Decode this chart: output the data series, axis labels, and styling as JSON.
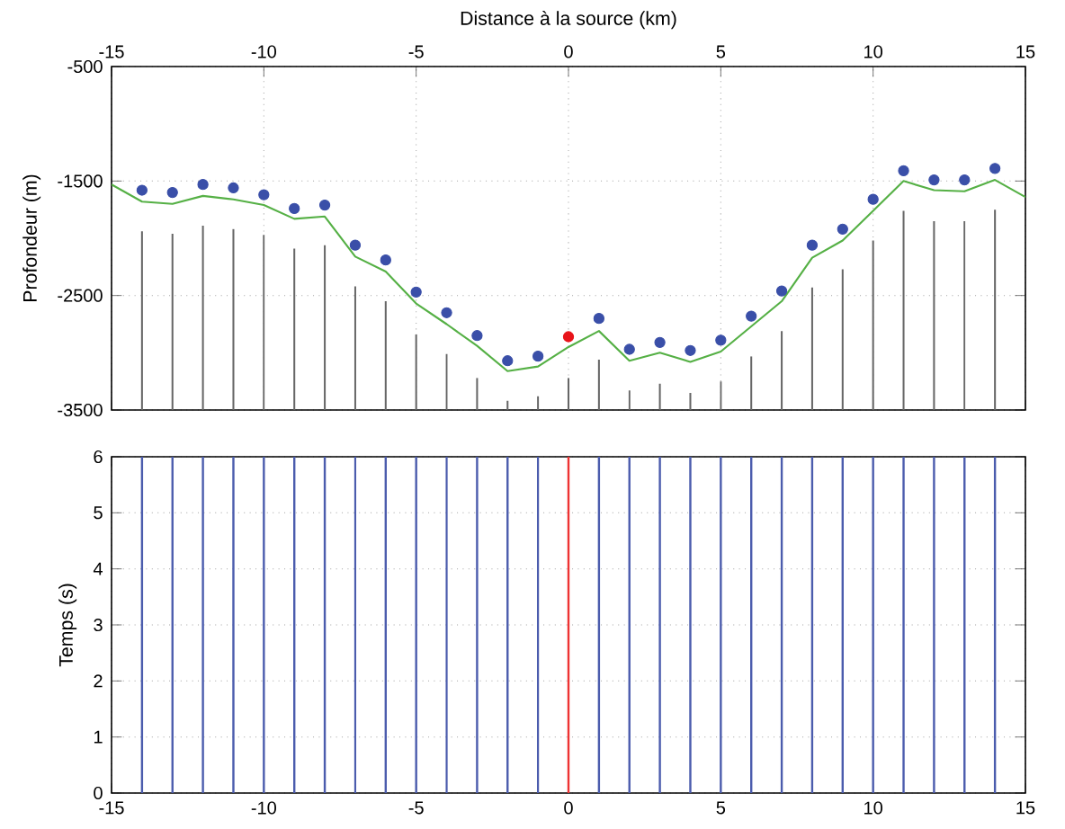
{
  "chart_data": [
    {
      "type": "line",
      "xlabel": "Distance à la source (km)",
      "ylabel": "Profondeur (m)",
      "xlim": [
        -15,
        15
      ],
      "xticks": [
        -15,
        -10,
        -5,
        0,
        5,
        10,
        15
      ],
      "ylim": [
        -3500,
        -500
      ],
      "yticks": [
        -3500,
        -2500,
        -1500,
        -500
      ],
      "grid": true,
      "series": [
        {
          "type": "bar",
          "color": "#666666",
          "x": [
            -14,
            -13,
            -12,
            -11,
            -10,
            -9,
            -8,
            -7,
            -6,
            -5,
            -4,
            -3,
            -2,
            -1,
            0,
            1,
            2,
            3,
            4,
            5,
            6,
            7,
            8,
            9,
            10,
            11,
            12,
            13,
            14
          ],
          "base": [
            -3500,
            -3500,
            -3500,
            -3500,
            -3500,
            -3500,
            -3500,
            -3500,
            -3500,
            -3500,
            -3500,
            -3500,
            -3500,
            -3500,
            -3500,
            -3500,
            -3500,
            -3500,
            -3500,
            -3500,
            -3500,
            -3500,
            -3500,
            -3500,
            -3500,
            -3500,
            -3500,
            -3500,
            -3500
          ],
          "values": [
            1560,
            1540,
            1610,
            1580,
            1530,
            1410,
            1440,
            1080,
            950,
            660,
            490,
            280,
            80,
            120,
            280,
            440,
            170,
            230,
            150,
            250,
            470,
            690,
            1070,
            1230,
            1480,
            1740,
            1650,
            1650,
            1750
          ]
        },
        {
          "color": "#55b045",
          "x": [
            -15,
            -14,
            -13,
            -12,
            -11,
            -10,
            -9,
            -8,
            -7,
            -6,
            -5,
            -4,
            -3,
            -2,
            -1,
            0,
            1,
            2,
            3,
            4,
            5,
            6,
            7,
            8,
            9,
            10,
            11,
            12,
            13,
            14,
            15
          ],
          "values": [
            -1530,
            -1680,
            -1700,
            -1630,
            -1660,
            -1710,
            -1830,
            -1810,
            -2160,
            -2290,
            -2570,
            -2750,
            -2940,
            -3160,
            -3120,
            -2950,
            -2810,
            -3070,
            -3000,
            -3080,
            -2990,
            -2770,
            -2550,
            -2170,
            -2020,
            -1760,
            -1500,
            -1580,
            -1590,
            -1490,
            -1640
          ]
        },
        {
          "type": "scatter",
          "color": "#3a4fa8",
          "x": [
            -14,
            -13,
            -12,
            -11,
            -10,
            -9,
            -8,
            -7,
            -6,
            -5,
            -4,
            -3,
            -2,
            -1,
            1,
            2,
            3,
            4,
            5,
            6,
            7,
            8,
            9,
            10,
            11,
            12,
            13,
            14
          ],
          "values": [
            -1580,
            -1600,
            -1530,
            -1560,
            -1620,
            -1740,
            -1710,
            -2060,
            -2190,
            -2470,
            -2650,
            -2850,
            -3070,
            -3030,
            -2700,
            -2970,
            -2910,
            -2980,
            -2890,
            -2680,
            -2460,
            -2060,
            -1920,
            -1660,
            -1410,
            -1490,
            -1490,
            -1390
          ]
        },
        {
          "type": "scatter",
          "color": "#e8141a",
          "x": [
            0
          ],
          "values": [
            -2860
          ]
        }
      ]
    },
    {
      "type": "line",
      "ylabel": "Temps (s)",
      "xlim": [
        -15,
        15
      ],
      "xticks": [
        -15,
        -10,
        -5,
        0,
        5,
        10,
        15
      ],
      "ylim": [
        0,
        6
      ],
      "yticks": [
        0,
        1,
        2,
        3,
        4,
        5,
        6
      ],
      "grid": true,
      "ref_lines": [
        {
          "axis": "x",
          "value": -14,
          "color": "#4b5cad"
        },
        {
          "axis": "x",
          "value": -13,
          "color": "#4b5cad"
        },
        {
          "axis": "x",
          "value": -12,
          "color": "#4b5cad"
        },
        {
          "axis": "x",
          "value": -11,
          "color": "#4b5cad"
        },
        {
          "axis": "x",
          "value": -10,
          "color": "#4b5cad"
        },
        {
          "axis": "x",
          "value": -9,
          "color": "#4b5cad"
        },
        {
          "axis": "x",
          "value": -8,
          "color": "#4b5cad"
        },
        {
          "axis": "x",
          "value": -7,
          "color": "#4b5cad"
        },
        {
          "axis": "x",
          "value": -6,
          "color": "#4b5cad"
        },
        {
          "axis": "x",
          "value": -5,
          "color": "#4b5cad"
        },
        {
          "axis": "x",
          "value": -4,
          "color": "#4b5cad"
        },
        {
          "axis": "x",
          "value": -3,
          "color": "#4b5cad"
        },
        {
          "axis": "x",
          "value": -2,
          "color": "#4b5cad"
        },
        {
          "axis": "x",
          "value": -1,
          "color": "#4b5cad"
        },
        {
          "axis": "x",
          "value": 0,
          "color": "#ee3333"
        },
        {
          "axis": "x",
          "value": 1,
          "color": "#4b5cad"
        },
        {
          "axis": "x",
          "value": 2,
          "color": "#4b5cad"
        },
        {
          "axis": "x",
          "value": 3,
          "color": "#4b5cad"
        },
        {
          "axis": "x",
          "value": 4,
          "color": "#4b5cad"
        },
        {
          "axis": "x",
          "value": 5,
          "color": "#4b5cad"
        },
        {
          "axis": "x",
          "value": 6,
          "color": "#4b5cad"
        },
        {
          "axis": "x",
          "value": 7,
          "color": "#4b5cad"
        },
        {
          "axis": "x",
          "value": 8,
          "color": "#4b5cad"
        },
        {
          "axis": "x",
          "value": 9,
          "color": "#4b5cad"
        },
        {
          "axis": "x",
          "value": 10,
          "color": "#4b5cad"
        },
        {
          "axis": "x",
          "value": 11,
          "color": "#4b5cad"
        },
        {
          "axis": "x",
          "value": 12,
          "color": "#4b5cad"
        },
        {
          "axis": "x",
          "value": 13,
          "color": "#4b5cad"
        },
        {
          "axis": "x",
          "value": 14,
          "color": "#4b5cad"
        }
      ]
    }
  ]
}
